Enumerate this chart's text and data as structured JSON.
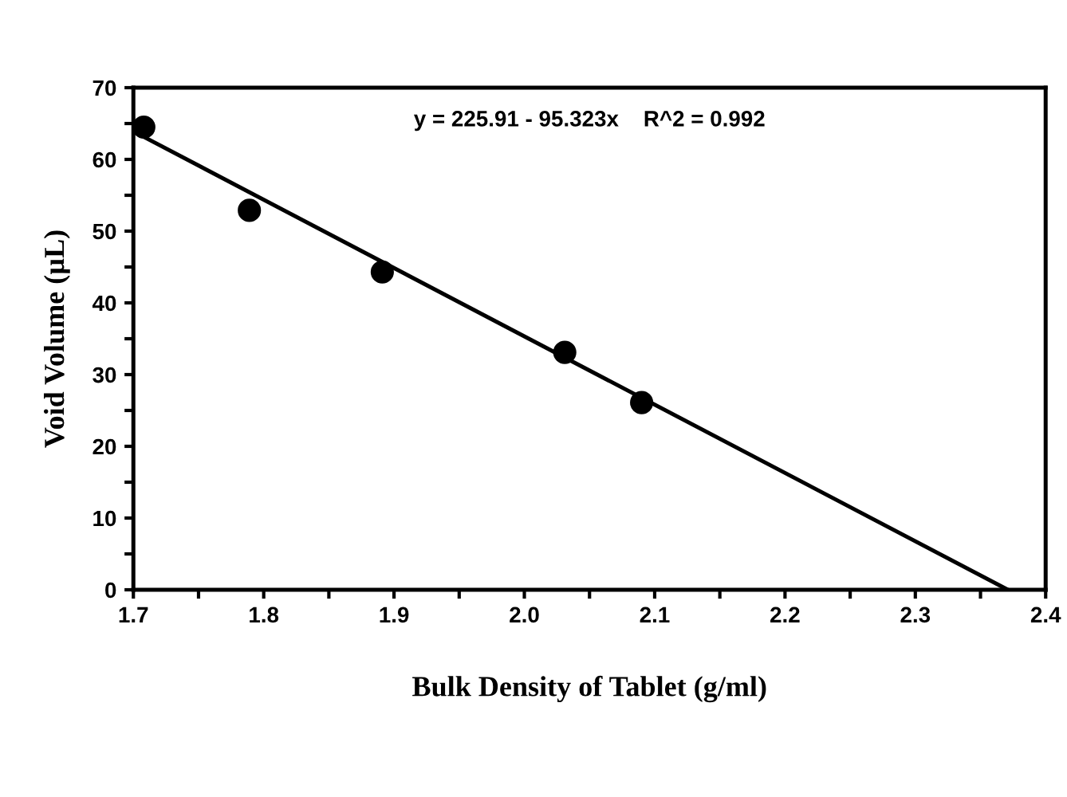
{
  "chart_data": {
    "type": "scatter",
    "xlabel": "Bulk Density of Tablet (g/ml)",
    "ylabel": "Void Volume (µL)",
    "annotations": [
      "y = 225.91 - 95.323x    R^2 = 0.992"
    ],
    "series": [
      {
        "color": "#000000",
        "marker": "circle",
        "x": [
          1.708,
          1.789,
          1.891,
          2.031,
          2.09
        ],
        "values": [
          64.5,
          52.9,
          44.3,
          33.1,
          26.1
        ]
      },
      {
        "type": "line",
        "color": "#000000",
        "marker": "none",
        "line_style": "solid",
        "x": [
          1.7,
          2.37
        ],
        "values": [
          63.9,
          0.1
        ]
      }
    ],
    "xlim": [
      1.7,
      2.4
    ],
    "xticks": [
      {
        "value": 1.7,
        "label": "1.7"
      },
      {
        "value": 1.75,
        "label": null
      },
      {
        "value": 1.8,
        "label": "1.8"
      },
      {
        "value": 1.85,
        "label": null
      },
      {
        "value": 1.9,
        "label": "1.9"
      },
      {
        "value": 1.95,
        "label": null
      },
      {
        "value": 2.0,
        "label": "2.0"
      },
      {
        "value": 2.05,
        "label": null
      },
      {
        "value": 2.1,
        "label": "2.1"
      },
      {
        "value": 2.15,
        "label": null
      },
      {
        "value": 2.2,
        "label": "2.2"
      },
      {
        "value": 2.25,
        "label": null
      },
      {
        "value": 2.3,
        "label": "2.3"
      },
      {
        "value": 2.35,
        "label": null
      },
      {
        "value": 2.4,
        "label": "2.4"
      }
    ],
    "ylim": [
      0,
      70
    ],
    "yticks": [
      0,
      {
        "value": 5,
        "label": null
      },
      10,
      {
        "value": 15,
        "label": null
      },
      20,
      {
        "value": 25,
        "label": null
      },
      30,
      {
        "value": 35,
        "label": null
      },
      40,
      {
        "value": 45,
        "label": null
      },
      50,
      {
        "value": 55,
        "label": null
      },
      60,
      {
        "value": 65,
        "label": null
      },
      70
    ],
    "grid": false,
    "legend": false
  }
}
